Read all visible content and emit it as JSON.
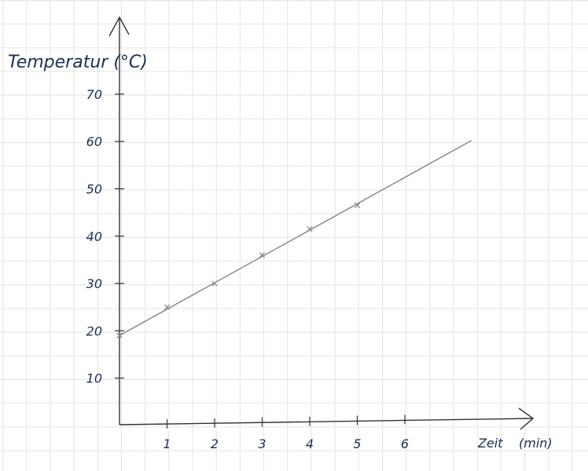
{
  "chart_data": {
    "type": "line",
    "title": "",
    "ylabel": "Temperatur (°C)",
    "xlabel_main": "Zeit",
    "xlabel_unit": "(min)",
    "xlim": [
      0,
      7.4
    ],
    "ylim": [
      0,
      70
    ],
    "x_ticks": [
      "1",
      "2",
      "3",
      "4",
      "5",
      "6"
    ],
    "y_ticks": [
      "10",
      "20",
      "30",
      "40",
      "50",
      "60",
      "70"
    ],
    "grid": true,
    "series": [
      {
        "type": "scatter",
        "marker": "x",
        "x": [
          0,
          1,
          2,
          3,
          4,
          5
        ],
        "y": [
          19,
          25,
          30,
          36,
          41.5,
          46.5
        ]
      },
      {
        "type": "line",
        "x": [
          0,
          7.4
        ],
        "y": [
          19,
          60.2
        ]
      }
    ],
    "colors": {
      "ink": "#1d2f4d",
      "line": "#8a8a8a",
      "marker": "#8a8a8a",
      "grid": "#e4e4e4"
    }
  }
}
